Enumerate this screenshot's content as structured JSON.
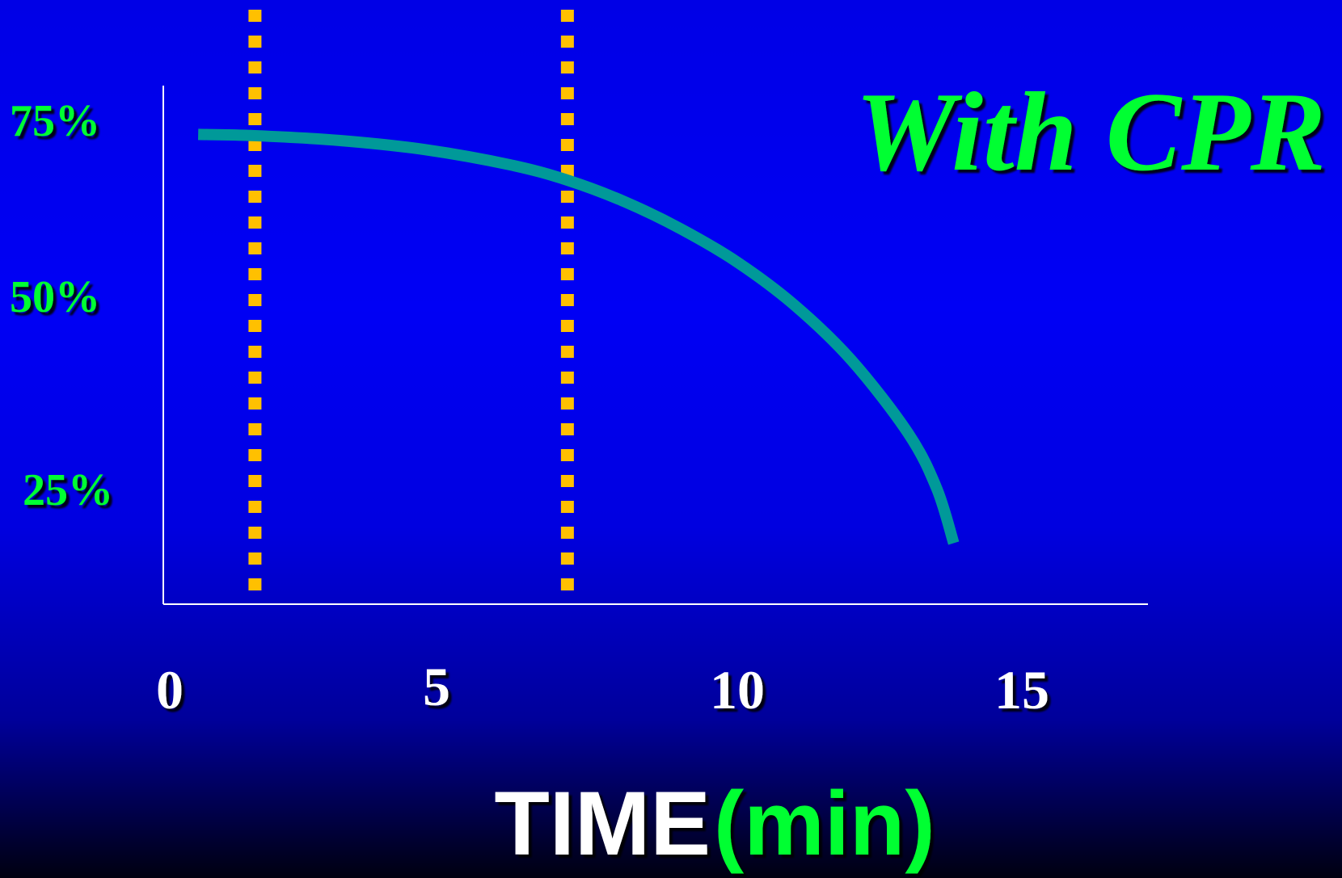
{
  "chart_data": {
    "type": "line",
    "title": "With CPR",
    "xlabel_main": "TIME",
    "xlabel_unit": "(min)",
    "x_ticks": [
      "0",
      "5",
      "10",
      "15"
    ],
    "y_ticks": [
      "75%",
      "50%",
      "25%"
    ],
    "xlim": [
      0,
      17
    ],
    "ylim": [
      0,
      85
    ],
    "series": [
      {
        "x": [
          0.5,
          1.5,
          3,
          4.5,
          6,
          7,
          8,
          9,
          10,
          11,
          12,
          13,
          13.5,
          13.8
        ],
        "y": [
          77,
          76.8,
          76,
          74.5,
          72,
          69.5,
          66,
          61.5,
          56,
          49,
          40,
          28,
          19,
          10
        ]
      }
    ],
    "vertical_markers": [
      1.5,
      7
    ],
    "colors": {
      "curve": "#009999",
      "marker": "#ffc000",
      "axis": "#ffffff",
      "ytick": "#00ff33",
      "title": "#00ff33"
    }
  }
}
